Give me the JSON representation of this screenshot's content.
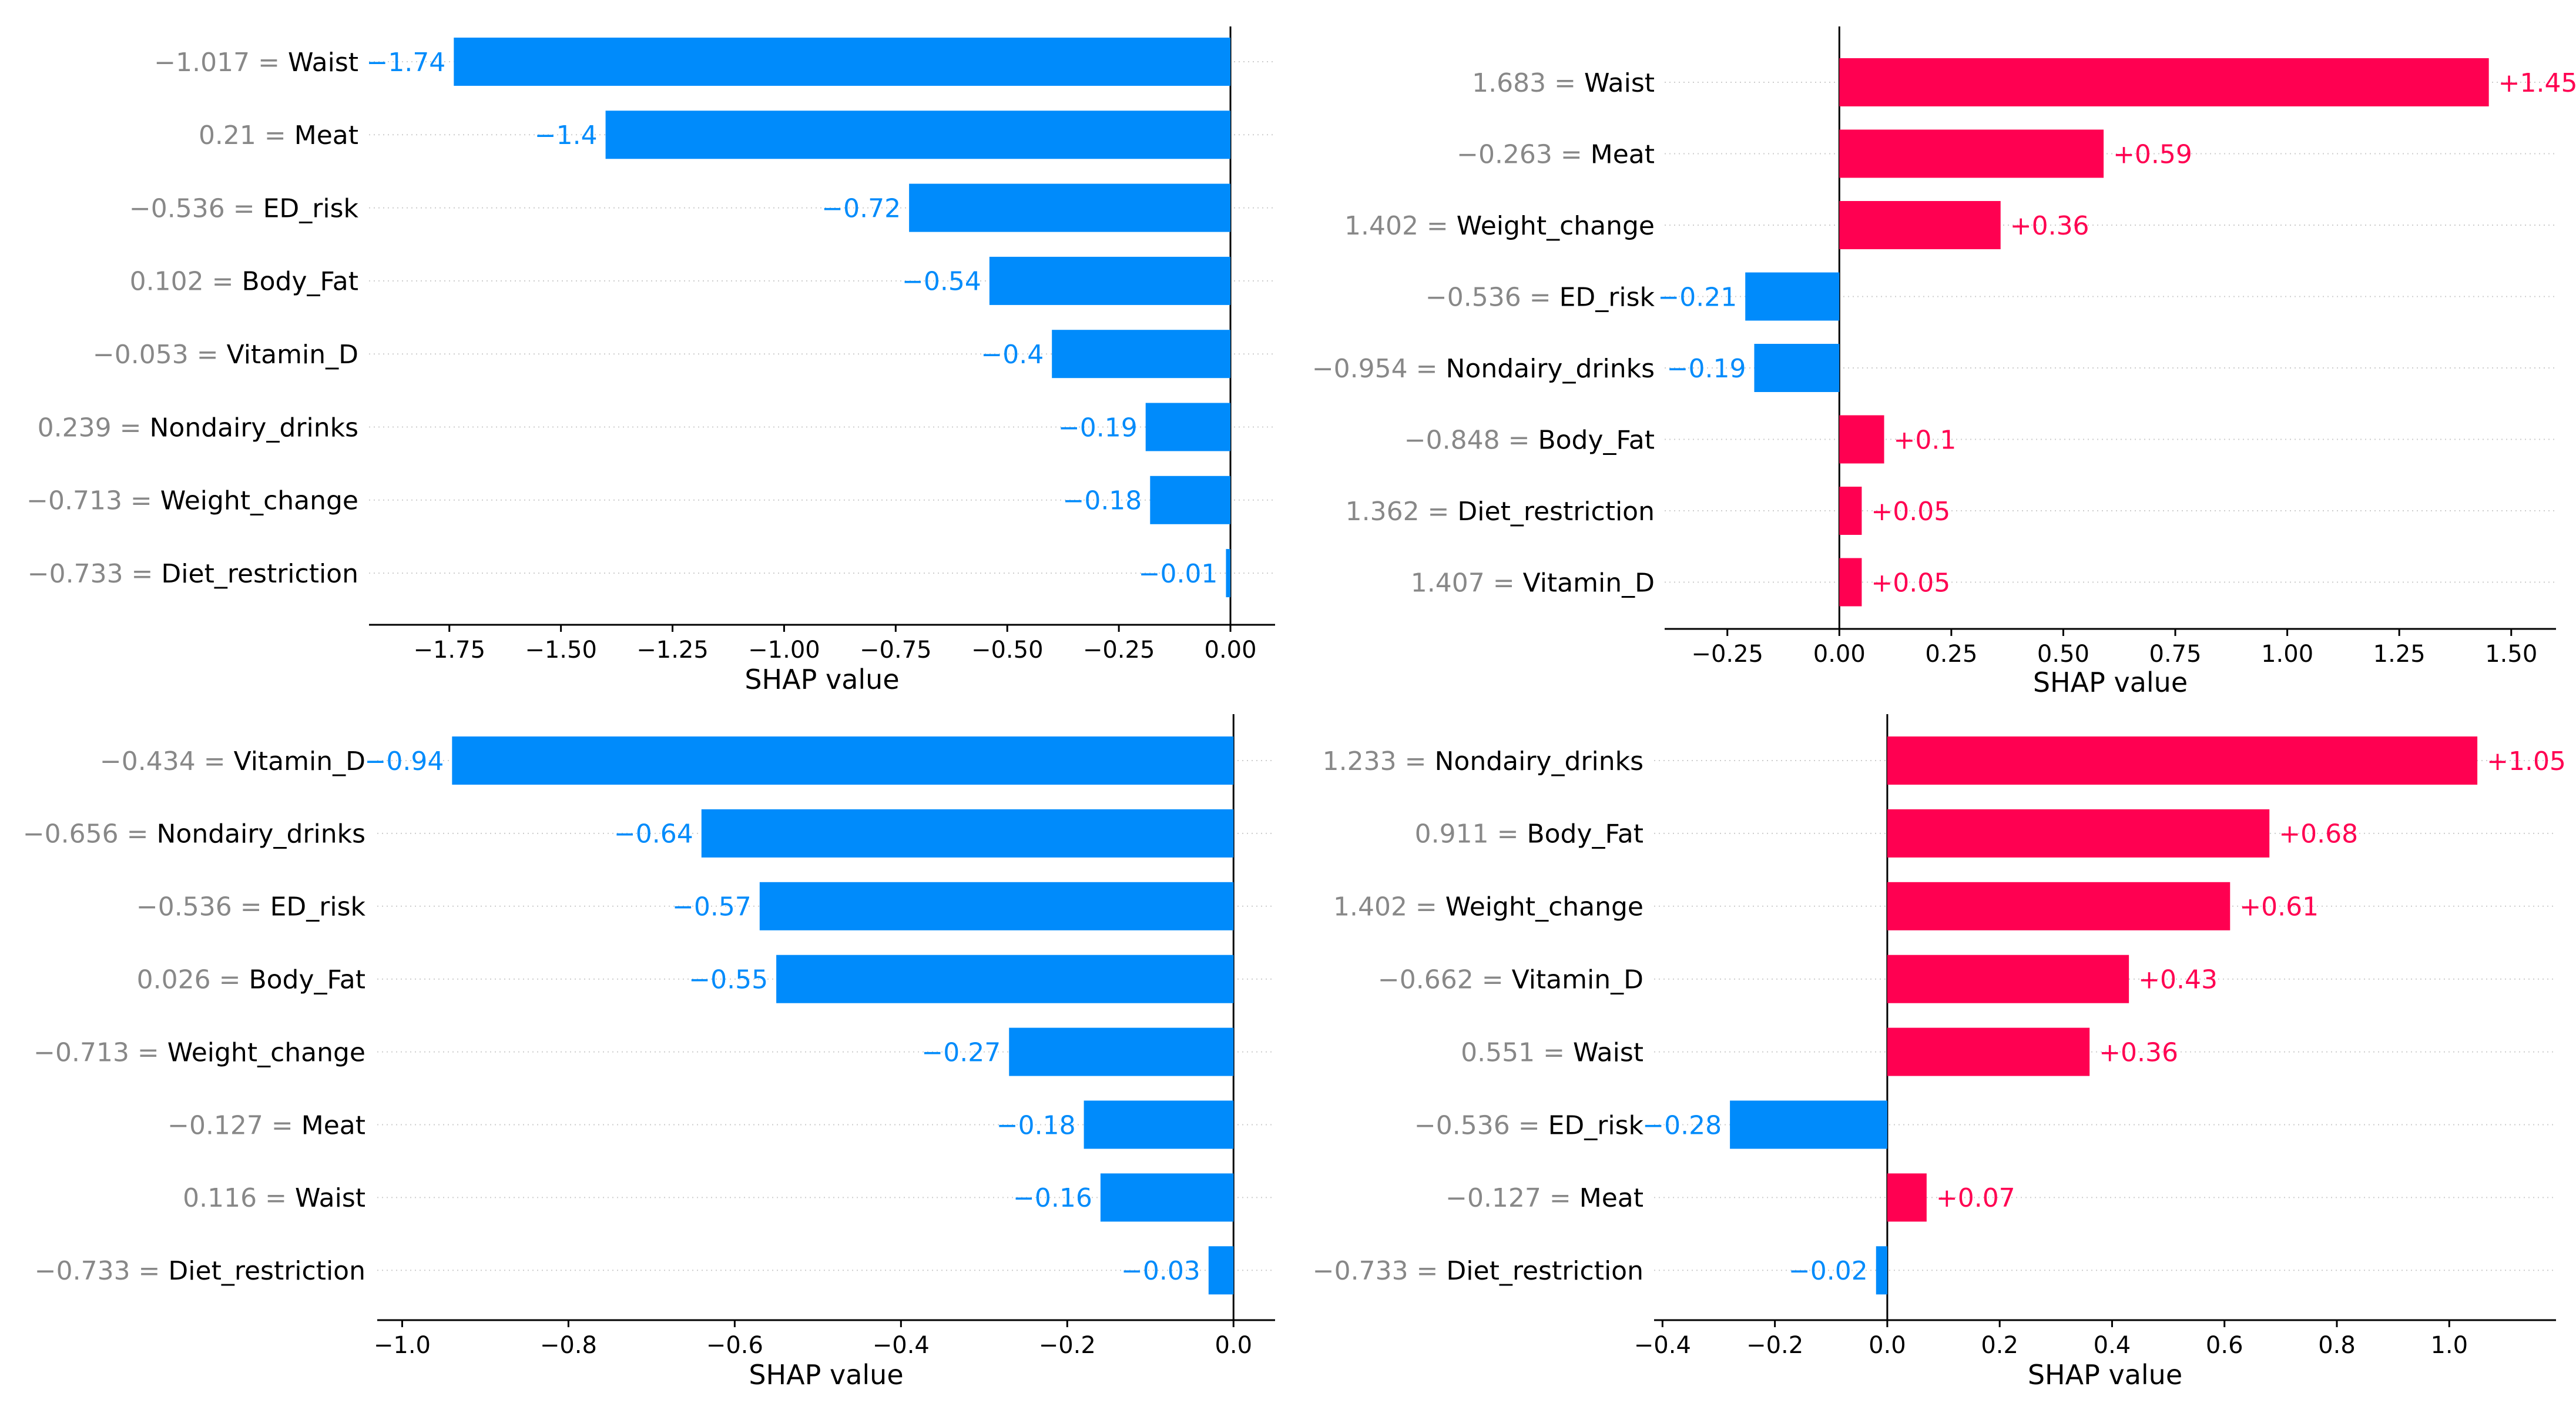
{
  "colors": {
    "negative": "#008bfb",
    "positive": "#ff0051",
    "grid": "#cccccc",
    "axis": "#000000",
    "feature_value": "#888888"
  },
  "chart_data": [
    {
      "type": "bar",
      "orientation": "horizontal",
      "title": "",
      "xlabel": "SHAP value",
      "xlim": [
        -1.93,
        0.1
      ],
      "xticks": [
        -1.75,
        -1.5,
        -1.25,
        -1.0,
        -0.75,
        -0.5,
        -0.25,
        0.0
      ],
      "xtick_labels": [
        "−1.75",
        "−1.50",
        "−1.25",
        "−1.00",
        "−0.75",
        "−0.50",
        "−0.25",
        "0.00"
      ],
      "features": [
        {
          "feature_value": "−1.017",
          "name": "Waist",
          "value": -1.74,
          "label": "−1.74"
        },
        {
          "feature_value": "0.21",
          "name": "Meat",
          "value": -1.4,
          "label": "−1.4"
        },
        {
          "feature_value": "−0.536",
          "name": "ED_risk",
          "value": -0.72,
          "label": "−0.72"
        },
        {
          "feature_value": "0.102",
          "name": "Body_Fat",
          "value": -0.54,
          "label": "−0.54"
        },
        {
          "feature_value": "−0.053",
          "name": "Vitamin_D",
          "value": -0.4,
          "label": "−0.4"
        },
        {
          "feature_value": "0.239",
          "name": "Nondairy_drinks",
          "value": -0.19,
          "label": "−0.19"
        },
        {
          "feature_value": "−0.713",
          "name": "Weight_change",
          "value": -0.18,
          "label": "−0.18"
        },
        {
          "feature_value": "−0.733",
          "name": "Diet_restriction",
          "value": -0.01,
          "label": "−0.01"
        }
      ]
    },
    {
      "type": "bar",
      "orientation": "horizontal",
      "title": "",
      "xlabel": "SHAP value",
      "xlim": [
        -0.39,
        1.6
      ],
      "xticks": [
        -0.25,
        0.0,
        0.25,
        0.5,
        0.75,
        1.0,
        1.25,
        1.5
      ],
      "xtick_labels": [
        "−0.25",
        "0.00",
        "0.25",
        "0.50",
        "0.75",
        "1.00",
        "1.25",
        "1.50"
      ],
      "features": [
        {
          "feature_value": "1.683",
          "name": "Waist",
          "value": 1.45,
          "label": "+1.45"
        },
        {
          "feature_value": "−0.263",
          "name": "Meat",
          "value": 0.59,
          "label": "+0.59"
        },
        {
          "feature_value": "1.402",
          "name": "Weight_change",
          "value": 0.36,
          "label": "+0.36"
        },
        {
          "feature_value": "−0.536",
          "name": "ED_risk",
          "value": -0.21,
          "label": "−0.21"
        },
        {
          "feature_value": "−0.954",
          "name": "Nondairy_drinks",
          "value": -0.19,
          "label": "−0.19"
        },
        {
          "feature_value": "−0.848",
          "name": "Body_Fat",
          "value": 0.1,
          "label": "+0.1"
        },
        {
          "feature_value": "1.362",
          "name": "Diet_restriction",
          "value": 0.05,
          "label": "+0.05"
        },
        {
          "feature_value": "1.407",
          "name": "Vitamin_D",
          "value": 0.05,
          "label": "+0.05"
        }
      ]
    },
    {
      "type": "bar",
      "orientation": "horizontal",
      "title": "",
      "xlabel": "SHAP value",
      "xlim": [
        -1.03,
        0.05
      ],
      "xticks": [
        -1.0,
        -0.8,
        -0.6,
        -0.4,
        -0.2,
        0.0
      ],
      "xtick_labels": [
        "−1.0",
        "−0.8",
        "−0.6",
        "−0.4",
        "−0.2",
        "0.0"
      ],
      "features": [
        {
          "feature_value": "−0.434",
          "name": "Vitamin_D",
          "value": -0.94,
          "label": "−0.94"
        },
        {
          "feature_value": "−0.656",
          "name": "Nondairy_drinks",
          "value": -0.64,
          "label": "−0.64"
        },
        {
          "feature_value": "−0.536",
          "name": "ED_risk",
          "value": -0.57,
          "label": "−0.57"
        },
        {
          "feature_value": "0.026",
          "name": "Body_Fat",
          "value": -0.55,
          "label": "−0.55"
        },
        {
          "feature_value": "−0.713",
          "name": "Weight_change",
          "value": -0.27,
          "label": "−0.27"
        },
        {
          "feature_value": "−0.127",
          "name": "Meat",
          "value": -0.18,
          "label": "−0.18"
        },
        {
          "feature_value": "0.116",
          "name": "Waist",
          "value": -0.16,
          "label": "−0.16"
        },
        {
          "feature_value": "−0.733",
          "name": "Diet_restriction",
          "value": -0.03,
          "label": "−0.03"
        }
      ]
    },
    {
      "type": "bar",
      "orientation": "horizontal",
      "title": "",
      "xlabel": "SHAP value",
      "xlim": [
        -0.415,
        1.19
      ],
      "xticks": [
        -0.4,
        -0.2,
        0.0,
        0.2,
        0.4,
        0.6,
        0.8,
        1.0
      ],
      "xtick_labels": [
        "−0.4",
        "−0.2",
        "0.0",
        "0.2",
        "0.4",
        "0.6",
        "0.8",
        "1.0"
      ],
      "features": [
        {
          "feature_value": "1.233",
          "name": "Nondairy_drinks",
          "value": 1.05,
          "label": "+1.05"
        },
        {
          "feature_value": "0.911",
          "name": "Body_Fat",
          "value": 0.68,
          "label": "+0.68"
        },
        {
          "feature_value": "1.402",
          "name": "Weight_change",
          "value": 0.61,
          "label": "+0.61"
        },
        {
          "feature_value": "−0.662",
          "name": "Vitamin_D",
          "value": 0.43,
          "label": "+0.43"
        },
        {
          "feature_value": "0.551",
          "name": "Waist",
          "value": 0.36,
          "label": "+0.36"
        },
        {
          "feature_value": "−0.536",
          "name": "ED_risk",
          "value": -0.28,
          "label": "−0.28"
        },
        {
          "feature_value": "−0.127",
          "name": "Meat",
          "value": 0.07,
          "label": "+0.07"
        },
        {
          "feature_value": "−0.733",
          "name": "Diet_restriction",
          "value": -0.02,
          "label": "−0.02"
        }
      ]
    }
  ]
}
